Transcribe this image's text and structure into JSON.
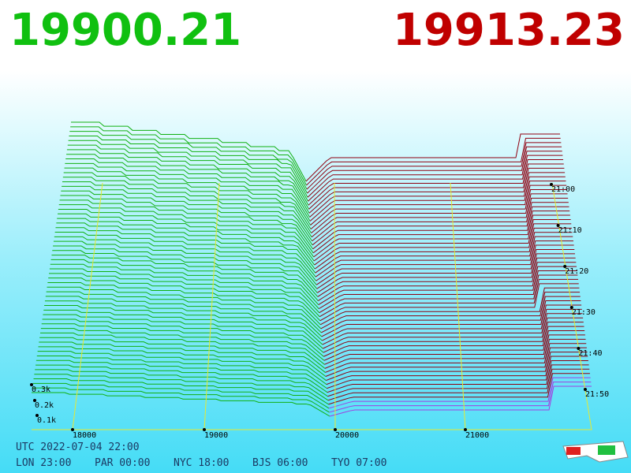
{
  "prices": {
    "bid": "19900.21",
    "ask": "19913.23"
  },
  "price_axis": [
    "18000",
    "19000",
    "20000",
    "21000"
  ],
  "depth_axis": [
    "0.3k",
    "0.2k",
    "0.1k"
  ],
  "time_axis": [
    "21:00",
    "21:10",
    "21:20",
    "21:30",
    "21:40",
    "21:50"
  ],
  "footer": {
    "utc": "UTC 2022-07-04 22:00",
    "zones": [
      "LON 23:00",
      "PAR 00:00",
      "NYC 18:00",
      "BJS 06:00",
      "TYO 07:00"
    ]
  }
}
